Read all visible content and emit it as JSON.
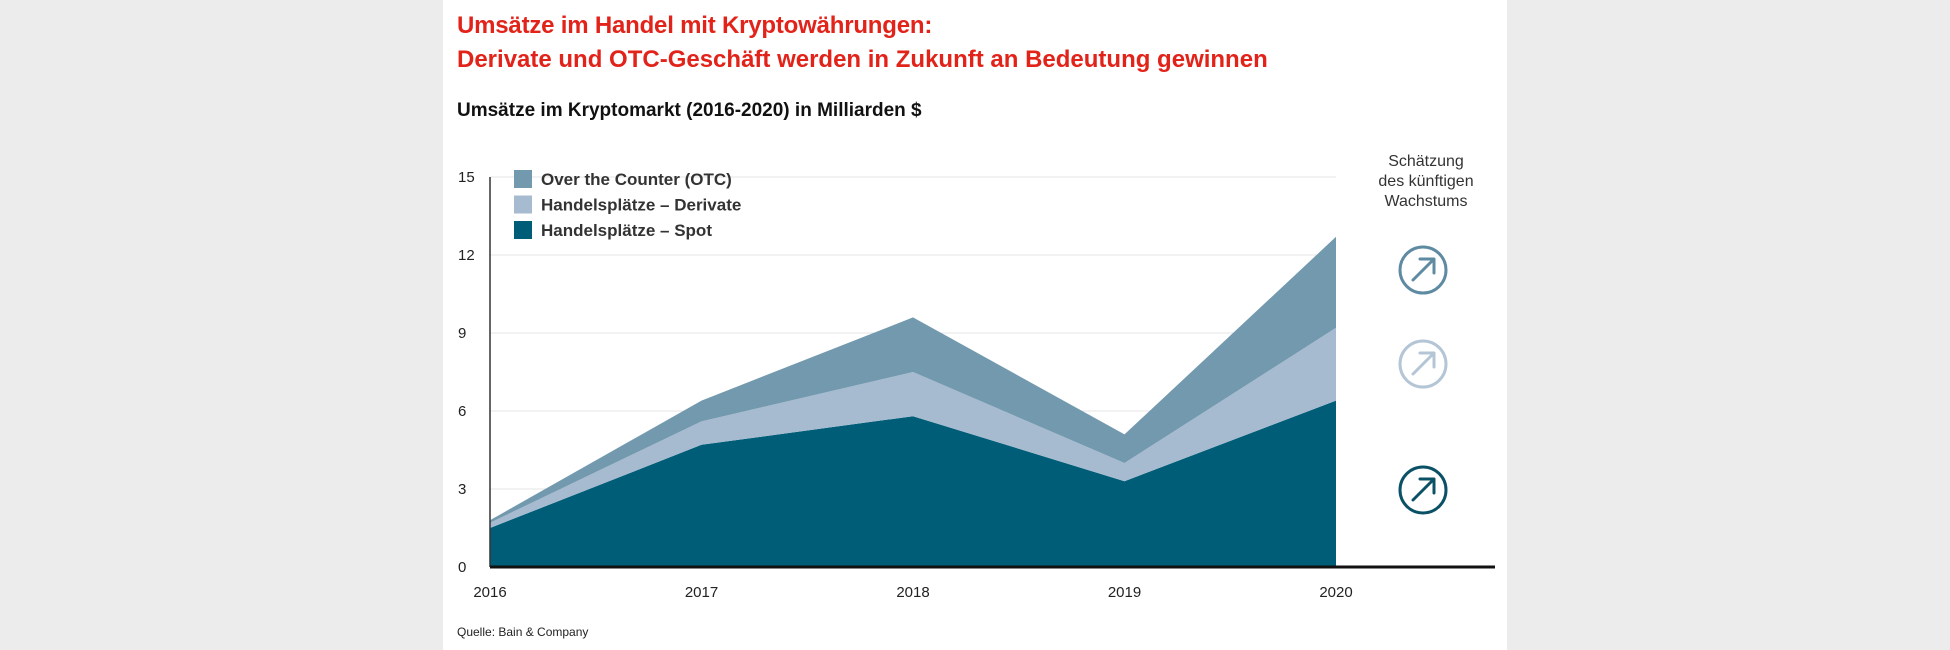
{
  "headline": "Umsätze im Handel mit Kryptowährungen:",
  "subheadline": "Derivate und OTC-Geschäft werden in Zukunft an Bedeutung gewinnen",
  "source": "Quelle: Bain & Company",
  "estimate_note": [
    "Schätzung",
    "des künftigen",
    "Wachstums"
  ],
  "colors": {
    "headline": "#e2231a",
    "otc": "#7299ae",
    "derivate": "#a6bbcf",
    "spot": "#005d78",
    "otc_icon": "#5e8aa2",
    "derivate_icon": "#b4c6d6",
    "spot_icon": "#0b5166"
  },
  "growth_icons": [
    {
      "series": "Over the Counter (OTC)",
      "icon": "arrow-up-right-circle-icon"
    },
    {
      "series": "Handelsplätze – Derivate",
      "icon": "arrow-up-right-circle-icon"
    },
    {
      "series": "Handelsplätze – Spot",
      "icon": "arrow-up-right-circle-icon"
    }
  ],
  "chart_data": {
    "type": "area",
    "stacked": true,
    "title": "Umsätze im Kryptomarkt (2016-2020) in Milliarden $",
    "x": [
      "2016",
      "2017",
      "2018",
      "2019",
      "2020"
    ],
    "yticks": [
      "0",
      "3",
      "6",
      "9",
      "12",
      "15"
    ],
    "ylim": [
      0,
      15
    ],
    "grid": true,
    "legend_position": "top-left",
    "series": [
      {
        "name": "Handelsplätze – Spot",
        "values": [
          1.5,
          4.7,
          5.8,
          3.3,
          6.4
        ]
      },
      {
        "name": "Handelsplätze – Derivate",
        "values": [
          0.2,
          0.9,
          1.7,
          0.7,
          2.8
        ]
      },
      {
        "name": "Over the Counter (OTC)",
        "values": [
          0.1,
          0.8,
          2.1,
          1.1,
          3.5
        ]
      }
    ]
  }
}
